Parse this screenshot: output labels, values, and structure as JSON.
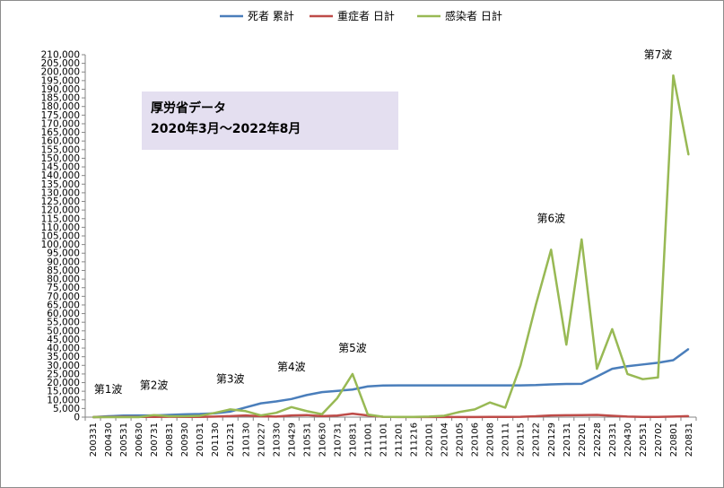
{
  "chart_data": {
    "type": "line",
    "title": "",
    "xlabel": "",
    "ylabel": "",
    "ylim": [
      0,
      210000
    ],
    "ytick_step": 5000,
    "grid": false,
    "legend_position": "top",
    "info_box": {
      "line1": "厚労省データ",
      "line2": "2020年3月〜2022年8月"
    },
    "categories": [
      "200331",
      "200430",
      "200531",
      "200630",
      "200731",
      "200831",
      "200930",
      "201031",
      "201130",
      "201231",
      "210130",
      "210227",
      "210330",
      "210429",
      "210531",
      "210630",
      "210731",
      "210831",
      "211001",
      "211101",
      "211201",
      "211216",
      "220101",
      "220104",
      "220105",
      "220106",
      "220108",
      "220111",
      "220115",
      "220122",
      "220129",
      "220131",
      "220201",
      "220228",
      "220331",
      "220430",
      "220531",
      "220702",
      "220801",
      "220831"
    ],
    "series": [
      {
        "name": "死者 累計",
        "color": "#4a7ebb",
        "values": [
          0,
          500,
          900,
          1000,
          1000,
          1300,
          1600,
          1800,
          2200,
          3200,
          5600,
          8000,
          9100,
          10500,
          12800,
          14500,
          15200,
          16000,
          17800,
          18300,
          18400,
          18400,
          18400,
          18400,
          18400,
          18400,
          18400,
          18400,
          18400,
          18600,
          19000,
          19200,
          19300,
          23500,
          28000,
          29500,
          30500,
          31500,
          33000,
          39500
        ]
      },
      {
        "name": "重症者 日計",
        "color": "#be4b48",
        "values": [
          0,
          100,
          200,
          100,
          100,
          200,
          150,
          150,
          300,
          600,
          1000,
          500,
          300,
          1000,
          1200,
          600,
          900,
          2000,
          1000,
          200,
          50,
          50,
          50,
          50,
          50,
          80,
          100,
          150,
          200,
          500,
          1000,
          1100,
          1200,
          1300,
          800,
          300,
          100,
          100,
          300,
          600
        ]
      },
      {
        "name": "感染者 日計",
        "color": "#98b954",
        "values": [
          0,
          0,
          0,
          0,
          1200,
          500,
          500,
          800,
          2500,
          4500,
          3500,
          1000,
          2500,
          5800,
          3500,
          1700,
          11000,
          25000,
          1500,
          200,
          100,
          100,
          300,
          800,
          3000,
          4500,
          8500,
          5500,
          30000,
          65000,
          97000,
          42000,
          103000,
          28000,
          51000,
          25000,
          22000,
          23000,
          198000,
          152000
        ]
      }
    ],
    "annotations": [
      {
        "text": "第1波",
        "x_index": 1,
        "y": 14000
      },
      {
        "text": "第2波",
        "x_index": 4,
        "y": 16500
      },
      {
        "text": "第3波",
        "x_index": 9,
        "y": 20000
      },
      {
        "text": "第4波",
        "x_index": 13,
        "y": 27000
      },
      {
        "text": "第5波",
        "x_index": 17,
        "y": 38000
      },
      {
        "text": "第6波",
        "x_index": 30,
        "y": 113000
      },
      {
        "text": "第7波",
        "x_index": 37,
        "y": 208000
      }
    ]
  }
}
